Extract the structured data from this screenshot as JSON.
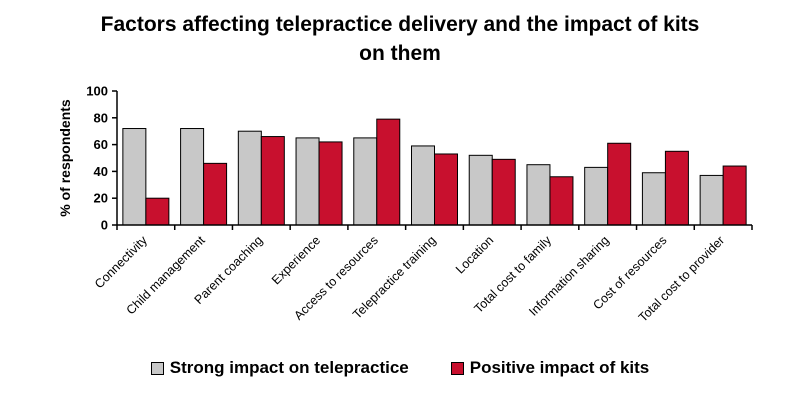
{
  "chart_data": {
    "type": "bar",
    "title": "Factors affecting telepractice delivery and the impact of kits on them",
    "xlabel": "",
    "ylabel": "% of respondents",
    "ylim": [
      0,
      100
    ],
    "yticks": [
      0,
      20,
      40,
      60,
      80,
      100
    ],
    "grid": false,
    "legend_position": "bottom",
    "categories": [
      "Connectivity",
      "Child management",
      "Parent coaching",
      "Experience",
      "Access to resources",
      "Telepractice training",
      "Location",
      "Total cost to family",
      "Information sharing",
      "Cost of resources",
      "Total cost to provider"
    ],
    "series": [
      {
        "name": "Strong impact on telepractice",
        "color": "#c8c8c8",
        "values": [
          72,
          72,
          70,
          65,
          65,
          59,
          52,
          45,
          43,
          39,
          37
        ]
      },
      {
        "name": "Positive impact of kits",
        "color": "#c8102e",
        "values": [
          20,
          46,
          66,
          62,
          79,
          53,
          49,
          36,
          61,
          55,
          44
        ]
      }
    ]
  }
}
